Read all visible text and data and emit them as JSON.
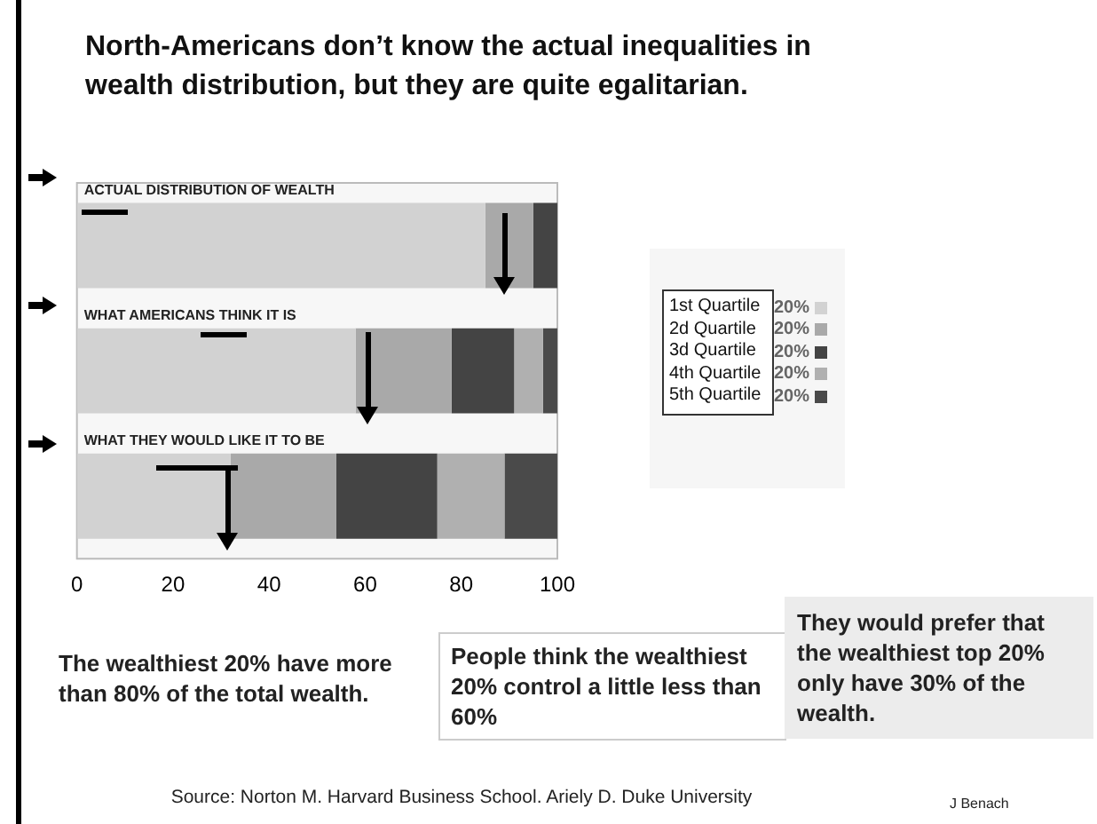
{
  "chart_data": {
    "type": "bar",
    "orientation": "horizontal",
    "stacked": true,
    "title": "North-Americans don’t know the actual inequalities in wealth distribution, but they are quite egalitarian.",
    "categories": [
      "ACTUAL DISTRIBUTION OF WEALTH",
      "WHAT AMERICANS THINK IT IS",
      "WHAT THEY WOULD LIKE IT TO BE"
    ],
    "series": [
      {
        "name": "1st Quartile",
        "color": "#d2d2d2",
        "values": [
          85,
          58,
          32
        ]
      },
      {
        "name": "2d Quartile",
        "color": "#a9a9a9",
        "values": [
          10,
          20,
          22
        ]
      },
      {
        "name": "3d Quartile",
        "color": "#444444",
        "values": [
          5,
          13,
          21
        ]
      },
      {
        "name": "4th Quartile",
        "color": "#b0b0b0",
        "values": [
          0,
          6,
          14
        ]
      },
      {
        "name": "5th Quartile",
        "color": "#4a4a4a",
        "values": [
          0,
          3,
          11
        ]
      }
    ],
    "xlim": [
      0,
      100
    ],
    "xticks": [
      0,
      20,
      40,
      60,
      80,
      100
    ],
    "grid": false,
    "legend": "right",
    "annotations": [
      "The wealthiest 20% have more than 80% of the total wealth.",
      "People think the wealthiest 20% control a little less than 60%",
      "They would prefer that the wealthiest top 20% only have 30% of the wealth.",
      "Source: Norton M. Harvard Business School. Ariely D. Duke University",
      "J Benach",
      "20%",
      "20%",
      "20%",
      "20%",
      "20%"
    ]
  }
}
